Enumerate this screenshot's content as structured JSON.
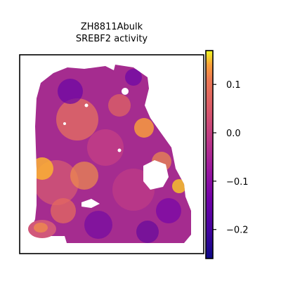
{
  "chart_data": {
    "type": "heatmap",
    "title_lines": [
      "ZH8811Abulk",
      "SREBF2 activity"
    ],
    "colormap": "plasma",
    "colorbar": {
      "range": [
        -0.26,
        0.17
      ],
      "ticks": [
        0.1,
        0.0,
        -0.1,
        -0.2
      ],
      "tick_labels": [
        "0.1",
        "0.0",
        "−0.1",
        "−0.2"
      ]
    }
  }
}
